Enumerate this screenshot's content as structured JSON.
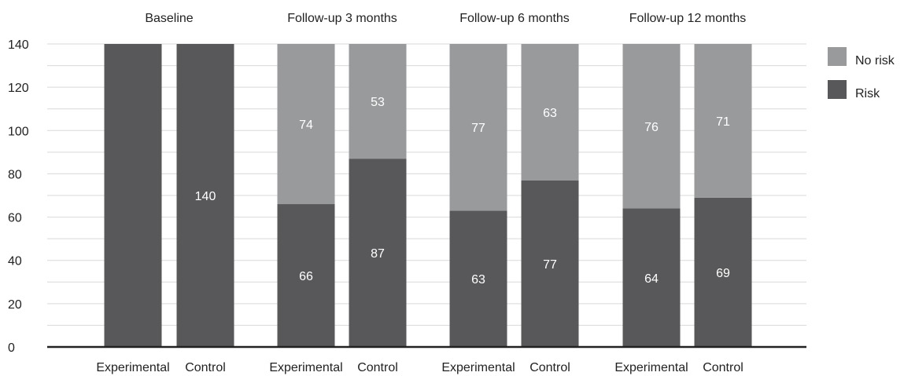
{
  "chart_data": {
    "type": "bar",
    "stacked": true,
    "ylim": [
      0,
      140
    ],
    "yticks": [
      0,
      20,
      40,
      60,
      80,
      100,
      120,
      140
    ],
    "grid": true,
    "legend_position": "right",
    "groups": [
      {
        "label": "Baseline",
        "categories": [
          "Experimental",
          "Control"
        ]
      },
      {
        "label": "Follow-up 3 months",
        "categories": [
          "Experimental",
          "Control"
        ]
      },
      {
        "label": "Follow-up 6 months",
        "categories": [
          "Experimental",
          "Control"
        ]
      },
      {
        "label": "Follow-up 12 months",
        "categories": [
          "Experimental",
          "Control"
        ]
      }
    ],
    "series": [
      {
        "name": "Risk",
        "color": "#58585a",
        "values": [
          140,
          140,
          66,
          87,
          63,
          77,
          64,
          69
        ],
        "labels": [
          "",
          "140",
          "66",
          "87",
          "63",
          "77",
          "64",
          "69"
        ]
      },
      {
        "name": "No risk",
        "color": "#999a9c",
        "values": [
          0,
          0,
          74,
          53,
          77,
          63,
          76,
          71
        ],
        "labels": [
          "",
          "",
          "74",
          "53",
          "77",
          "63",
          "76",
          "71"
        ]
      }
    ],
    "legend_order": [
      "No risk",
      "Risk"
    ],
    "colors": {
      "axis": "#222222",
      "grid": "#d9d9d9",
      "text": "#222222"
    }
  }
}
